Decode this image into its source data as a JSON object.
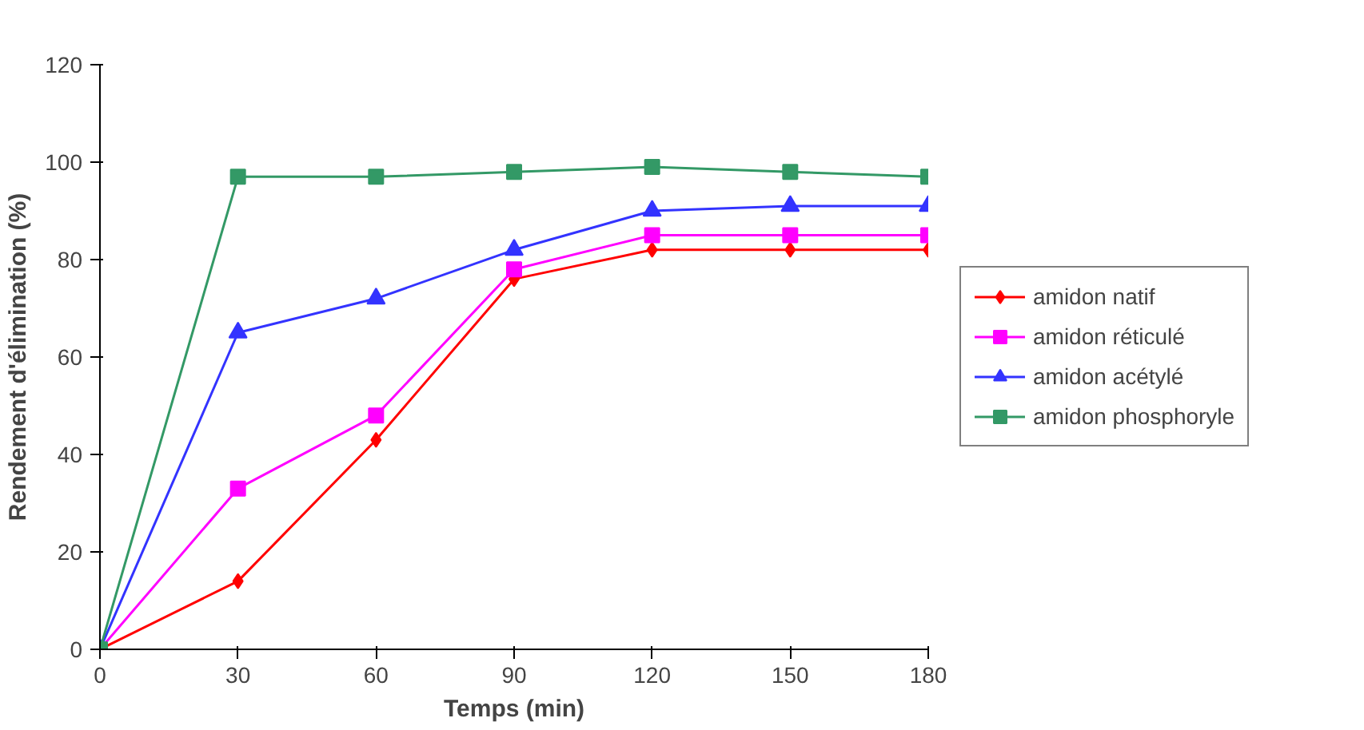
{
  "chart_data": {
    "type": "line",
    "xlabel": "Temps (min)",
    "ylabel": "Rendement d'élimination (%)",
    "x": [
      0,
      30,
      60,
      90,
      120,
      150,
      180
    ],
    "series": [
      {
        "name": "amidon natif",
        "color": "#ff0000",
        "marker": "diamond",
        "values": [
          0,
          14,
          43,
          76,
          82,
          82,
          82
        ]
      },
      {
        "name": "amidon réticulé",
        "color": "#ff00ff",
        "marker": "square",
        "values": [
          0,
          33,
          48,
          78,
          85,
          85,
          85
        ]
      },
      {
        "name": "amidon acétylé",
        "color": "#3333ff",
        "marker": "triangle",
        "values": [
          0,
          65,
          72,
          82,
          90,
          91,
          91
        ]
      },
      {
        "name": "amidon phosphoryle",
        "color": "#339966",
        "marker": "square",
        "values": [
          0,
          97,
          97,
          98,
          99,
          98,
          97
        ]
      }
    ],
    "xlim": [
      0,
      180
    ],
    "xticks": [
      0,
      30,
      60,
      90,
      120,
      150,
      180
    ],
    "ylim": [
      0,
      120
    ],
    "yticks": [
      0,
      20,
      40,
      60,
      80,
      100,
      120
    ],
    "grid": false,
    "legend": "right",
    "line_style": "solid"
  }
}
